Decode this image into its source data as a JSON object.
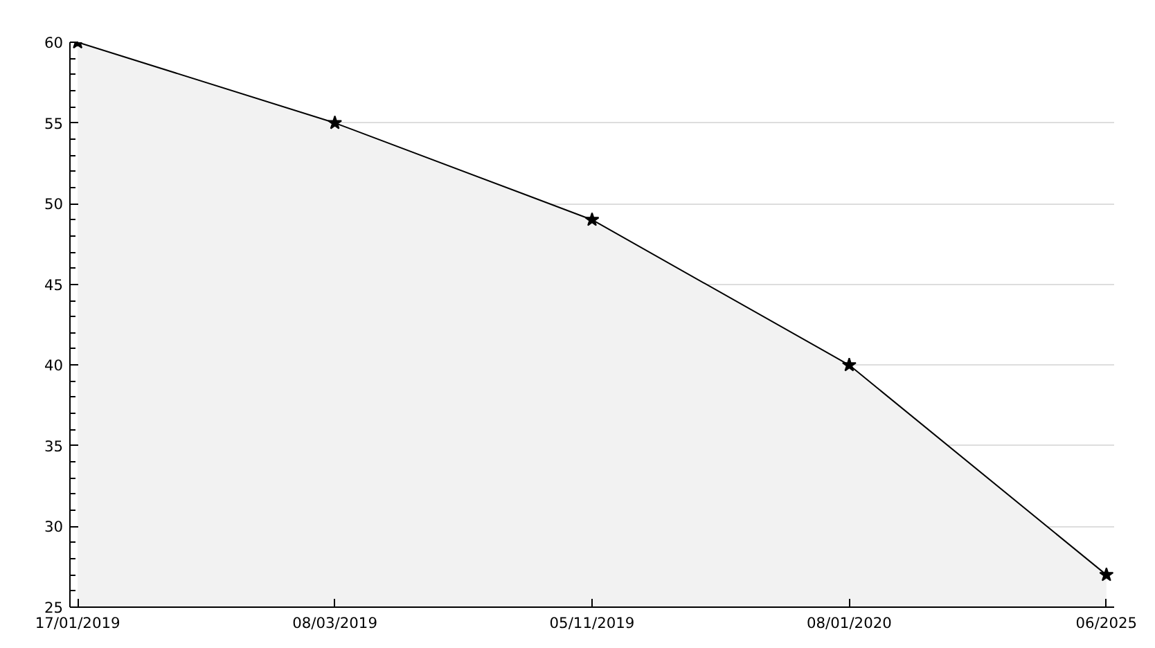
{
  "chart_data": {
    "type": "area",
    "categories": [
      "17/01/2019",
      "08/03/2019",
      "05/11/2019",
      "08/01/2020",
      "06/2025"
    ],
    "values": [
      60,
      55,
      49,
      40,
      27
    ],
    "color": "#f2f2f2",
    "marker": "star",
    "ylim": [
      25,
      60
    ],
    "yticks": [
      25,
      30,
      35,
      40,
      45,
      50,
      55,
      60
    ],
    "grid": "y"
  }
}
